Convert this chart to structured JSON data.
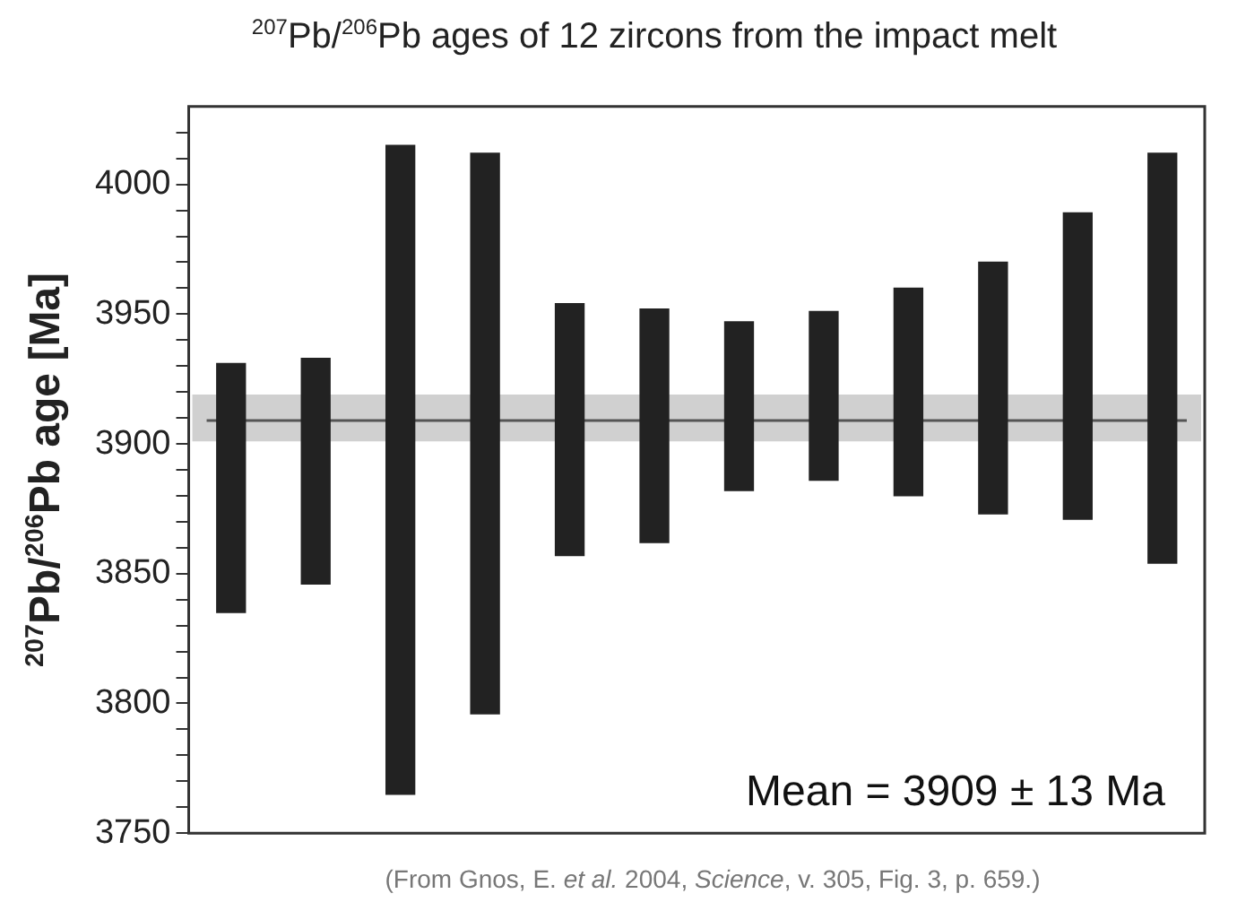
{
  "chart_data": {
    "type": "bar",
    "title": "$^{207}$Pb/$^{206}$Pb ages of 12 zircons from the impact melt",
    "ylabel": "$^{207}$Pb/$^{206}$Pb age [Ma]",
    "annotations": [
      "Mean = 3909 ± 13 Ma",
      "(From Gnos, E. et al. 2004, Science, v. 305, Fig. 3, p. 659.)"
    ],
    "categories": [
      null,
      null,
      null,
      null,
      null,
      null,
      null,
      null,
      null,
      null,
      null,
      null
    ],
    "base": [
      3835,
      3846,
      3765,
      3796,
      3857,
      3862,
      3882,
      3886,
      3880,
      3873,
      3871,
      3854
    ],
    "values": [
      96,
      87,
      250,
      216,
      97,
      90,
      65,
      65,
      80,
      97,
      118,
      158
    ],
    "color": "#222222",
    "ylim": [
      3750,
      4030
    ],
    "yticks": [
      3750,
      {
        "value": 3760,
        "label": null
      },
      {
        "value": 3770,
        "label": null
      },
      {
        "value": 3780,
        "label": null
      },
      {
        "value": 3790,
        "label": null
      },
      3800,
      {
        "value": 3810,
        "label": null
      },
      {
        "value": 3820,
        "label": null
      },
      {
        "value": 3830,
        "label": null
      },
      {
        "value": 3840,
        "label": null
      },
      3850,
      {
        "value": 3860,
        "label": null
      },
      {
        "value": 3870,
        "label": null
      },
      {
        "value": 3880,
        "label": null
      },
      {
        "value": 3890,
        "label": null
      },
      3900,
      {
        "value": 3910,
        "label": null
      },
      {
        "value": 3920,
        "label": null
      },
      {
        "value": 3930,
        "label": null
      },
      {
        "value": 3940,
        "label": null
      },
      3950,
      {
        "value": 3960,
        "label": null
      },
      {
        "value": 3970,
        "label": null
      },
      {
        "value": 3980,
        "label": null
      },
      {
        "value": 3990,
        "label": null
      },
      4000,
      {
        "value": 4010,
        "label": null
      },
      {
        "value": 4020,
        "label": null
      }
    ],
    "ref_lines": [
      {
        "axis": "y",
        "value": 3909,
        "color": "#555555"
      }
    ],
    "bands": [
      {
        "axis": "y",
        "from": 3901,
        "to": 3919,
        "color": "#d0d0d0"
      }
    ],
    "grid": false,
    "legend": false,
    "tick_labels": "y"
  }
}
